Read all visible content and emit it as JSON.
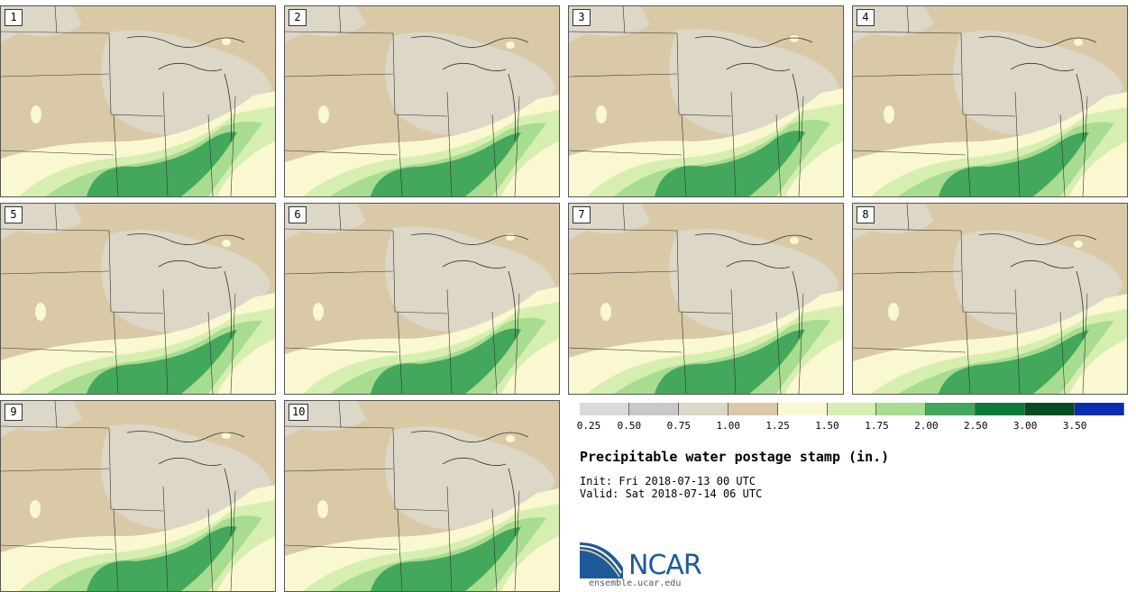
{
  "panels": [
    {
      "label": "1"
    },
    {
      "label": "2"
    },
    {
      "label": "3"
    },
    {
      "label": "4"
    },
    {
      "label": "5"
    },
    {
      "label": "6"
    },
    {
      "label": "7"
    },
    {
      "label": "8"
    },
    {
      "label": "9"
    },
    {
      "label": "10"
    }
  ],
  "colorbar": {
    "colors": [
      "#d9d9d9",
      "#c8c8c8",
      "#dcd7c6",
      "#d9c9a6",
      "#faf8d0",
      "#d6efb1",
      "#a8dc90",
      "#43a85c",
      "#0b7b3c",
      "#024d22",
      "#0a2db0"
    ],
    "ticks": [
      "0.25",
      "0.50",
      "0.75",
      "1.00",
      "1.25",
      "1.50",
      "1.75",
      "2.00",
      "2.50",
      "3.00",
      "3.50"
    ]
  },
  "title": "Precipitable water postage stamp (in.)",
  "init": "Init: Fri 2018-07-13 00 UTC",
  "valid": "Valid: Sat 2018-07-14 06 UTC",
  "logo": {
    "text": "NCAR",
    "url": "ensemble.ucar.edu",
    "color": "#1e5a99"
  }
}
